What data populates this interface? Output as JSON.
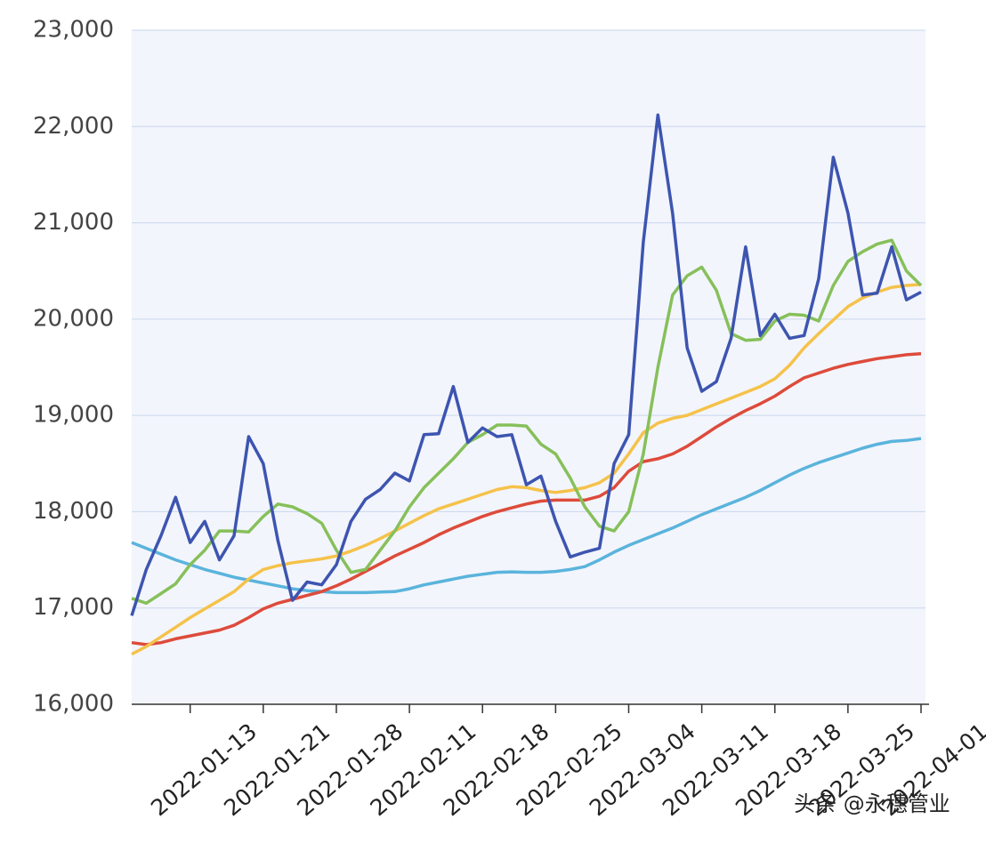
{
  "chart_data": {
    "type": "line",
    "categories": [
      null,
      null,
      null,
      null,
      "2022-01-13",
      null,
      null,
      null,
      null,
      "2022-01-21",
      null,
      null,
      null,
      null,
      "2022-01-28",
      null,
      null,
      null,
      null,
      "2022-02-11",
      null,
      null,
      null,
      null,
      "2022-02-18",
      null,
      null,
      null,
      null,
      "2022-02-25",
      null,
      null,
      null,
      null,
      "2022-03-04",
      null,
      null,
      null,
      null,
      "2022-03-11",
      null,
      null,
      null,
      null,
      "2022-03-18",
      null,
      null,
      null,
      null,
      "2022-03-25",
      null,
      null,
      null,
      null,
      "2022-04-01"
    ],
    "series": [
      {
        "color": "#5ab4dc",
        "values": [
          17680,
          17620,
          17560,
          17500,
          17450,
          17400,
          17360,
          17320,
          17290,
          17260,
          17230,
          17200,
          17180,
          17170,
          17160,
          17160,
          17160,
          17165,
          17170,
          17200,
          17240,
          17270,
          17300,
          17330,
          17350,
          17370,
          17375,
          17370,
          17370,
          17380,
          17400,
          17430,
          17500,
          17580,
          17650,
          17710,
          17770,
          17830,
          17900,
          17970,
          18030,
          18090,
          18150,
          18220,
          18300,
          18380,
          18450,
          18510,
          18560,
          18610,
          18660,
          18700,
          18730,
          18740,
          18760
        ]
      },
      {
        "color": "#dd4b3b",
        "values": [
          16640,
          16620,
          16640,
          16680,
          16710,
          16740,
          16770,
          16820,
          16900,
          16990,
          17050,
          17090,
          17130,
          17170,
          17230,
          17300,
          17380,
          17460,
          17540,
          17610,
          17680,
          17760,
          17830,
          17890,
          17950,
          18000,
          18040,
          18080,
          18110,
          18120,
          18120,
          18120,
          18160,
          18250,
          18420,
          18520,
          18550,
          18600,
          18680,
          18780,
          18880,
          18970,
          19050,
          19120,
          19200,
          19300,
          19390,
          19440,
          19490,
          19530,
          19560,
          19590,
          19610,
          19630,
          19640
        ]
      },
      {
        "color": "#f5c24a",
        "values": [
          16520,
          16600,
          16700,
          16800,
          16900,
          16990,
          17080,
          17170,
          17300,
          17400,
          17440,
          17470,
          17490,
          17510,
          17540,
          17590,
          17650,
          17720,
          17800,
          17880,
          17960,
          18030,
          18080,
          18130,
          18180,
          18230,
          18260,
          18250,
          18220,
          18200,
          18220,
          18250,
          18300,
          18400,
          18600,
          18820,
          18920,
          18970,
          19000,
          19060,
          19120,
          19180,
          19240,
          19300,
          19380,
          19520,
          19700,
          19850,
          19990,
          20130,
          20220,
          20280,
          20330,
          20350,
          20360
        ]
      },
      {
        "color": "#86c05a",
        "values": [
          17100,
          17050,
          17150,
          17250,
          17450,
          17600,
          17800,
          17800,
          17790,
          17950,
          18080,
          18050,
          17980,
          17880,
          17600,
          17370,
          17400,
          17600,
          17800,
          18050,
          18250,
          18400,
          18550,
          18720,
          18800,
          18900,
          18900,
          18890,
          18700,
          18600,
          18350,
          18050,
          17850,
          17800,
          18000,
          18600,
          19500,
          20250,
          20450,
          20540,
          20300,
          19850,
          19780,
          19790,
          19980,
          20050,
          20040,
          19980,
          20350,
          20600,
          20700,
          20780,
          20820,
          20500,
          20350
        ]
      },
      {
        "color": "#3d55b0",
        "values": [
          16920,
          17400,
          17750,
          18150,
          17680,
          17900,
          17500,
          17750,
          18780,
          18500,
          17700,
          17080,
          17270,
          17240,
          17450,
          17900,
          18130,
          18230,
          18400,
          18320,
          18800,
          18810,
          19300,
          18720,
          18870,
          18780,
          18800,
          18280,
          18370,
          17900,
          17530,
          17580,
          17620,
          18500,
          18800,
          20800,
          22120,
          21100,
          19700,
          19250,
          19350,
          19800,
          20750,
          19830,
          20050,
          19800,
          19830,
          20420,
          21680,
          21100,
          20250,
          20270,
          20750,
          20200,
          20280
        ]
      }
    ],
    "ylim": [
      16000,
      23000
    ],
    "yticks": [
      {
        "value": 16000,
        "label": "16,000"
      },
      {
        "value": 17000,
        "label": "17,000"
      },
      {
        "value": 18000,
        "label": "18,000"
      },
      {
        "value": 19000,
        "label": "19,000"
      },
      {
        "value": 20000,
        "label": "20,000"
      },
      {
        "value": 21000,
        "label": "21,000"
      },
      {
        "value": 22000,
        "label": "22,000"
      },
      {
        "value": 23000,
        "label": "23,000"
      }
    ],
    "grid": true,
    "annotation": "头条 @永穗管业"
  }
}
